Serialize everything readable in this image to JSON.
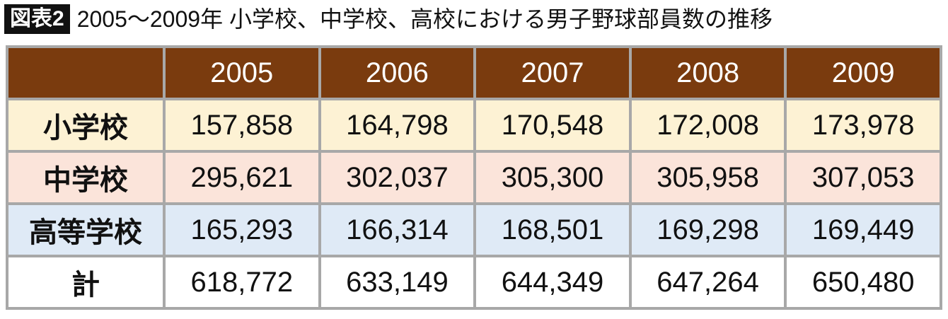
{
  "header": {
    "badge": "図表2",
    "title": "2005〜2009年 小学校、中学校、高校における男子野球部員数の推移"
  },
  "table": {
    "columns": [
      "2005",
      "2006",
      "2007",
      "2008",
      "2009"
    ],
    "rows": [
      [
        "小学校",
        "157,858",
        "164,798",
        "170,548",
        "172,008",
        "173,978"
      ],
      [
        "中学校",
        "295,621",
        "302,037",
        "305,300",
        "305,958",
        "307,053"
      ],
      [
        "高等学校",
        "165,293",
        "166,314",
        "168,501",
        "169,298",
        "169,449"
      ],
      [
        "計",
        "618,772",
        "633,149",
        "644,349",
        "647,264",
        "650,480"
      ]
    ]
  }
}
